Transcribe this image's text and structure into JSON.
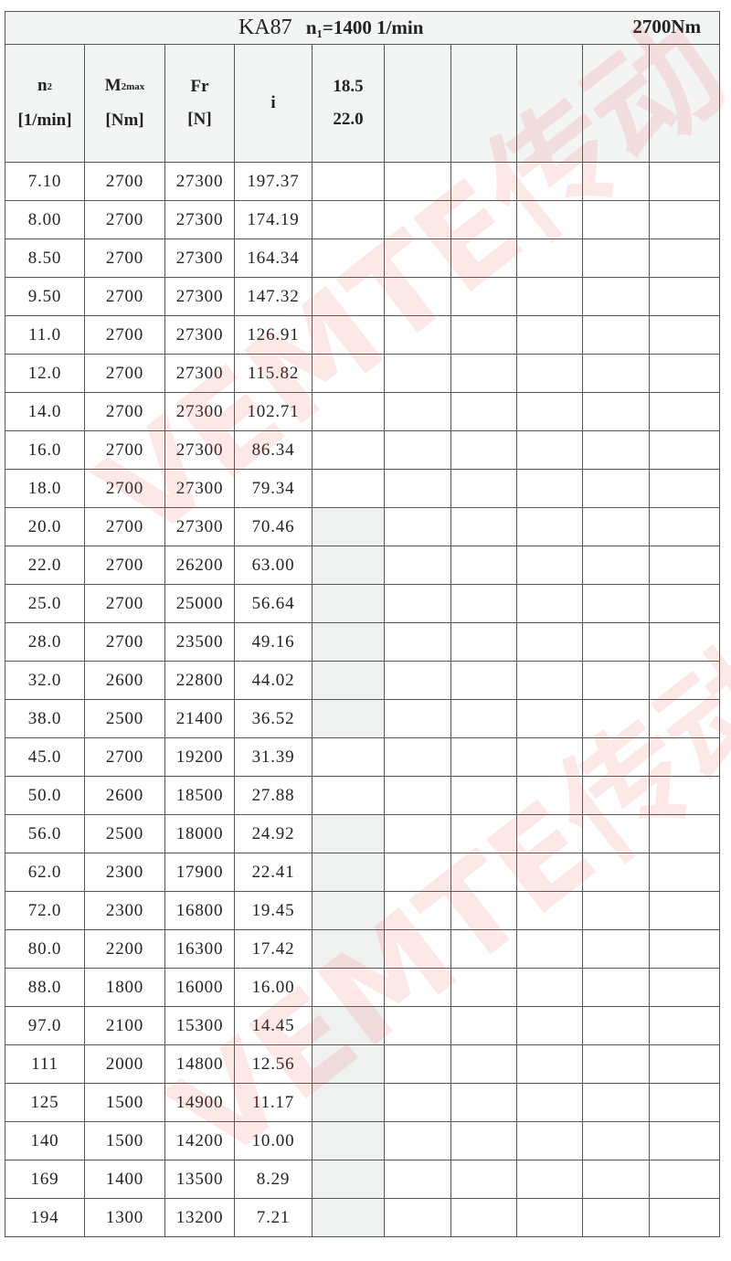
{
  "title": {
    "model": "KA87",
    "input_speed": "n₁=1400 1/min",
    "torque": "2700Nm"
  },
  "headers": {
    "n2": {
      "symbol": "n",
      "sub": "2",
      "unit": "[1/min]"
    },
    "m2max": {
      "symbol": "M",
      "sub": "2max",
      "unit": "[Nm]"
    },
    "fr": {
      "symbol": "Fr",
      "unit": "[N]"
    },
    "i": {
      "symbol": "i"
    },
    "motor_power": {
      "line1": "18.5",
      "line2": "22.0"
    }
  },
  "watermark": "VEMTE传动",
  "shade_color": "#eff0f0",
  "rows": [
    {
      "n2": "7.10",
      "m2max": "2700",
      "fr": "27300",
      "i": "197.37",
      "shaded": false
    },
    {
      "n2": "8.00",
      "m2max": "2700",
      "fr": "27300",
      "i": "174.19",
      "shaded": false
    },
    {
      "n2": "8.50",
      "m2max": "2700",
      "fr": "27300",
      "i": "164.34",
      "shaded": false
    },
    {
      "n2": "9.50",
      "m2max": "2700",
      "fr": "27300",
      "i": "147.32",
      "shaded": false
    },
    {
      "n2": "11.0",
      "m2max": "2700",
      "fr": "27300",
      "i": "126.91",
      "shaded": false
    },
    {
      "n2": "12.0",
      "m2max": "2700",
      "fr": "27300",
      "i": "115.82",
      "shaded": false
    },
    {
      "n2": "14.0",
      "m2max": "2700",
      "fr": "27300",
      "i": "102.71",
      "shaded": false
    },
    {
      "n2": "16.0",
      "m2max": "2700",
      "fr": "27300",
      "i": "86.34",
      "shaded": false
    },
    {
      "n2": "18.0",
      "m2max": "2700",
      "fr": "27300",
      "i": "79.34",
      "shaded": false
    },
    {
      "n2": "20.0",
      "m2max": "2700",
      "fr": "27300",
      "i": "70.46",
      "shaded": true
    },
    {
      "n2": "22.0",
      "m2max": "2700",
      "fr": "26200",
      "i": "63.00",
      "shaded": true
    },
    {
      "n2": "25.0",
      "m2max": "2700",
      "fr": "25000",
      "i": "56.64",
      "shaded": true
    },
    {
      "n2": "28.0",
      "m2max": "2700",
      "fr": "23500",
      "i": "49.16",
      "shaded": true
    },
    {
      "n2": "32.0",
      "m2max": "2600",
      "fr": "22800",
      "i": "44.02",
      "shaded": true
    },
    {
      "n2": "38.0",
      "m2max": "2500",
      "fr": "21400",
      "i": "36.52",
      "shaded": true
    },
    {
      "n2": "45.0",
      "m2max": "2700",
      "fr": "19200",
      "i": "31.39",
      "shaded": false
    },
    {
      "n2": "50.0",
      "m2max": "2600",
      "fr": "18500",
      "i": "27.88",
      "shaded": false
    },
    {
      "n2": "56.0",
      "m2max": "2500",
      "fr": "18000",
      "i": "24.92",
      "shaded": true
    },
    {
      "n2": "62.0",
      "m2max": "2300",
      "fr": "17900",
      "i": "22.41",
      "shaded": true
    },
    {
      "n2": "72.0",
      "m2max": "2300",
      "fr": "16800",
      "i": "19.45",
      "shaded": true
    },
    {
      "n2": "80.0",
      "m2max": "2200",
      "fr": "16300",
      "i": "17.42",
      "shaded": true
    },
    {
      "n2": "88.0",
      "m2max": "1800",
      "fr": "16000",
      "i": "16.00",
      "shaded": false
    },
    {
      "n2": "97.0",
      "m2max": "2100",
      "fr": "15300",
      "i": "14.45",
      "shaded": true
    },
    {
      "n2": "111",
      "m2max": "2000",
      "fr": "14800",
      "i": "12.56",
      "shaded": true
    },
    {
      "n2": "125",
      "m2max": "1500",
      "fr": "14900",
      "i": "11.17",
      "shaded": true
    },
    {
      "n2": "140",
      "m2max": "1500",
      "fr": "14200",
      "i": "10.00",
      "shaded": true
    },
    {
      "n2": "169",
      "m2max": "1400",
      "fr": "13500",
      "i": "8.29",
      "shaded": true
    },
    {
      "n2": "194",
      "m2max": "1300",
      "fr": "13200",
      "i": "7.21",
      "shaded": true
    }
  ]
}
